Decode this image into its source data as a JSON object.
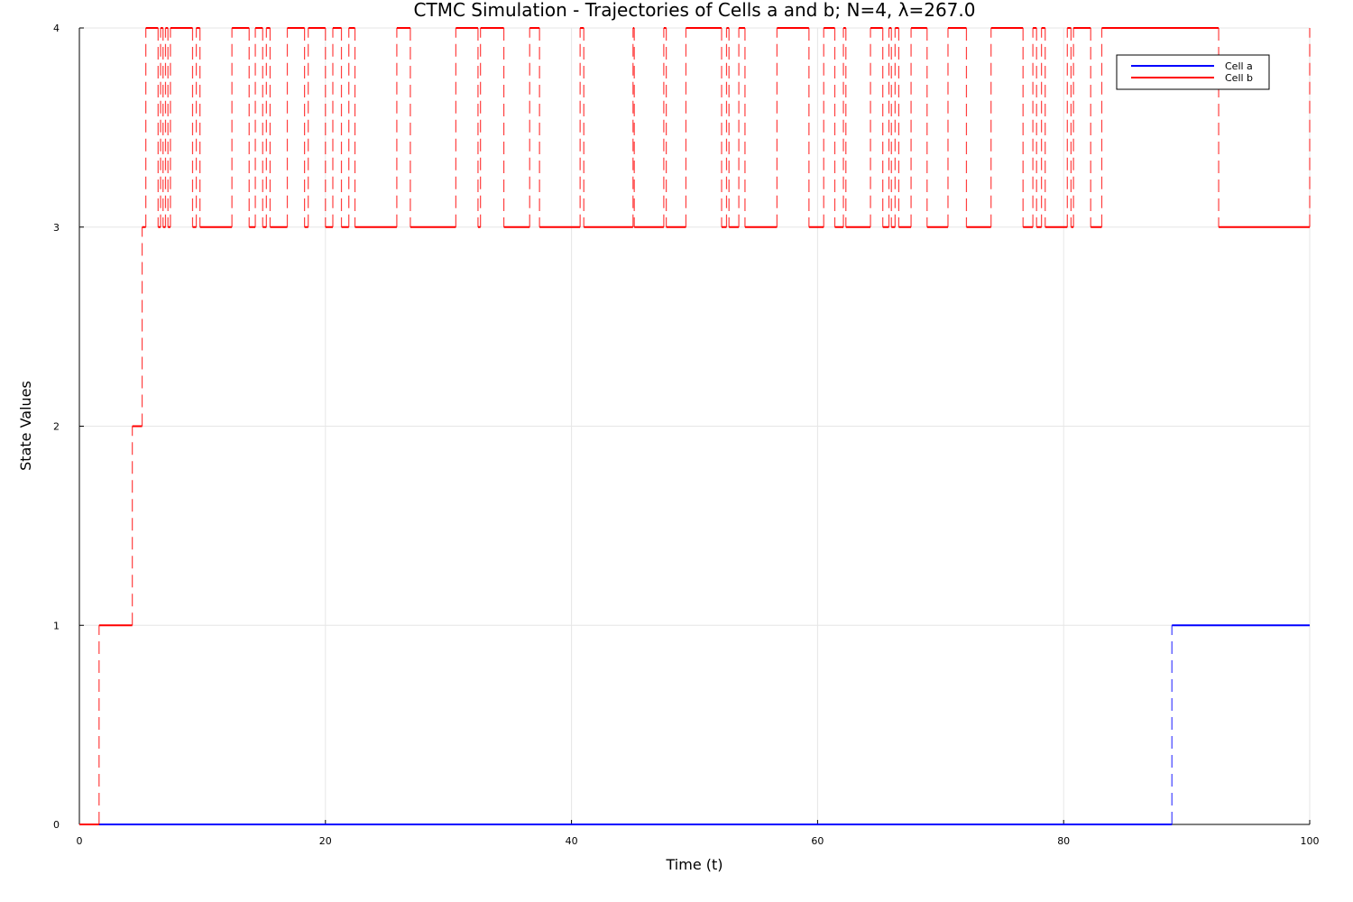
{
  "chart_data": {
    "type": "line",
    "title": "CTMC Simulation - Trajectories of Cells a and b; N=4, λ=267.0",
    "xlabel": "Time (t)",
    "ylabel": "State Values",
    "xlim": [
      0,
      100
    ],
    "ylim": [
      0,
      4
    ],
    "xticks": [
      "0",
      "20",
      "40",
      "60",
      "80",
      "100"
    ],
    "yticks": [
      "0",
      "1",
      "2",
      "3",
      "4"
    ],
    "grid": true,
    "legend_position": "top-right",
    "series": [
      {
        "name": "Cell a",
        "color": "#0000ff",
        "style": "step",
        "x": [
          0,
          88.8,
          100
        ],
        "y": [
          0,
          1,
          1
        ]
      },
      {
        "name": "Cell b",
        "color": "#ff0000",
        "style": "step",
        "x": [
          0,
          1.6,
          4.3,
          5.1,
          5.4,
          6.4,
          6.6,
          6.8,
          7.0,
          7.2,
          7.4,
          9.2,
          9.5,
          9.8,
          12.4,
          13.8,
          14.3,
          14.9,
          15.2,
          15.5,
          16.9,
          18.3,
          18.6,
          20.0,
          20.6,
          21.3,
          21.9,
          22.4,
          25.8,
          26.9,
          30.6,
          32.4,
          32.6,
          34.5,
          36.6,
          37.4,
          40.7,
          41.0,
          45.0,
          45.1,
          47.5,
          47.7,
          49.3,
          52.2,
          52.6,
          52.8,
          53.6,
          54.1,
          56.7,
          59.3,
          60.5,
          61.4,
          62.1,
          62.3,
          64.3,
          65.3,
          65.8,
          66.0,
          66.3,
          66.6,
          67.6,
          68.9,
          70.6,
          72.1,
          74.1,
          76.7,
          77.5,
          77.8,
          78.2,
          78.5,
          80.3,
          80.6,
          80.8,
          82.2,
          83.1,
          92.6,
          100
        ],
        "y": [
          0,
          1,
          2,
          3,
          4,
          3,
          4,
          3,
          4,
          3,
          4,
          3,
          4,
          3,
          4,
          3,
          4,
          3,
          4,
          3,
          4,
          3,
          4,
          3,
          4,
          3,
          4,
          3,
          4,
          3,
          4,
          3,
          4,
          3,
          4,
          3,
          4,
          3,
          4,
          3,
          4,
          3,
          4,
          3,
          4,
          3,
          4,
          3,
          4,
          3,
          4,
          3,
          4,
          3,
          4,
          3,
          4,
          3,
          4,
          3,
          4,
          3,
          4,
          3,
          4,
          3,
          4,
          3,
          4,
          3,
          4,
          3,
          4,
          3,
          4,
          3,
          4
        ]
      }
    ]
  }
}
